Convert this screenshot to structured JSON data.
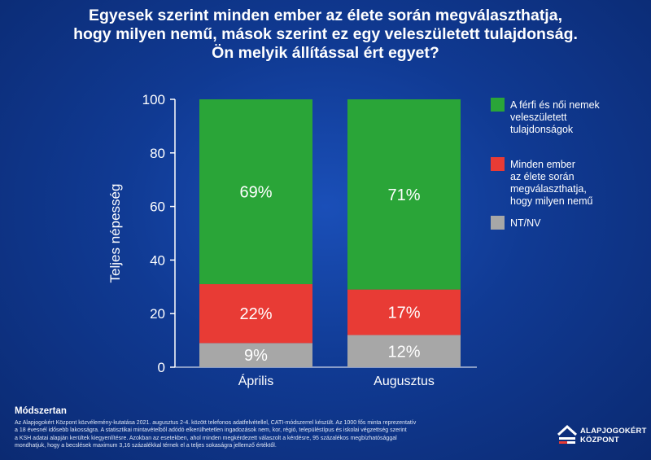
{
  "title": {
    "line1": "Egyesek szerint minden ember az élete során megválaszthatja,",
    "line2": "hogy milyen nemű, mások szerint ez egy veleszületett tulajdonság.",
    "line3": "Ön melyik állítással ért egyet?"
  },
  "chart_data": {
    "type": "bar",
    "stacked": true,
    "categories": [
      "Április",
      "Augusztus"
    ],
    "series": [
      {
        "name": "NT/NV",
        "values": [
          9,
          12
        ],
        "labels": [
          "9%",
          "12%"
        ],
        "color": "#a7a7a7"
      },
      {
        "name": "Minden ember az élete során megválaszthatja, hogy milyen nemű",
        "values": [
          22,
          17
        ],
        "labels": [
          "22%",
          "17%"
        ],
        "color": "#e83b35"
      },
      {
        "name": "A férfi és női nemek veleszületett tulajdonságok",
        "values": [
          69,
          71
        ],
        "labels": [
          "69%",
          "71%"
        ],
        "color": "#2aa538"
      }
    ],
    "legend": [
      {
        "lines": [
          "A férfi és női nemek",
          "veleszületett",
          "tulajdonságok"
        ],
        "color": "#2aa538"
      },
      {
        "lines": [
          "Minden ember",
          "az élete során",
          "megválaszthatja,",
          "hogy milyen nemű"
        ],
        "color": "#e83b35"
      },
      {
        "lines": [
          "NT/NV"
        ],
        "color": "#a7a7a7"
      }
    ],
    "ylabel": "Teljes népesség",
    "ylim": [
      0,
      100
    ],
    "yticks": [
      0,
      20,
      40,
      60,
      80,
      100
    ],
    "legend_position": "right"
  },
  "method": {
    "title": "Módszertan",
    "lines": [
      "Az Alapjogokért Központ közvélemény-kutatása 2021. augusztus 2-4. között telefonos adatfelvétellel, CATI-módszerrel készült. Az 1000 fős minta reprezentatív",
      "a 18 évesnél idősebb lakosságra. A statisztikai mintavételből adódó elkerülhetetlen ingadozások nem, kor, régió, településtípus és iskolai végzettség szerint",
      "a KSH adatai alapján kerültek kiegyenlítésre. Azokban az esetekben, ahol minden megkérdezett válaszolt a kérdésre, 95 százalékos megbízhatósággal",
      "mondhatjuk, hogy a becslések maximum 3,16 százalékkal térnek el a teljes sokaságra jellemző értéktől."
    ]
  },
  "logo": {
    "line1": "ALAPJOGOKÉRT",
    "line2": "KÖZPONT"
  }
}
